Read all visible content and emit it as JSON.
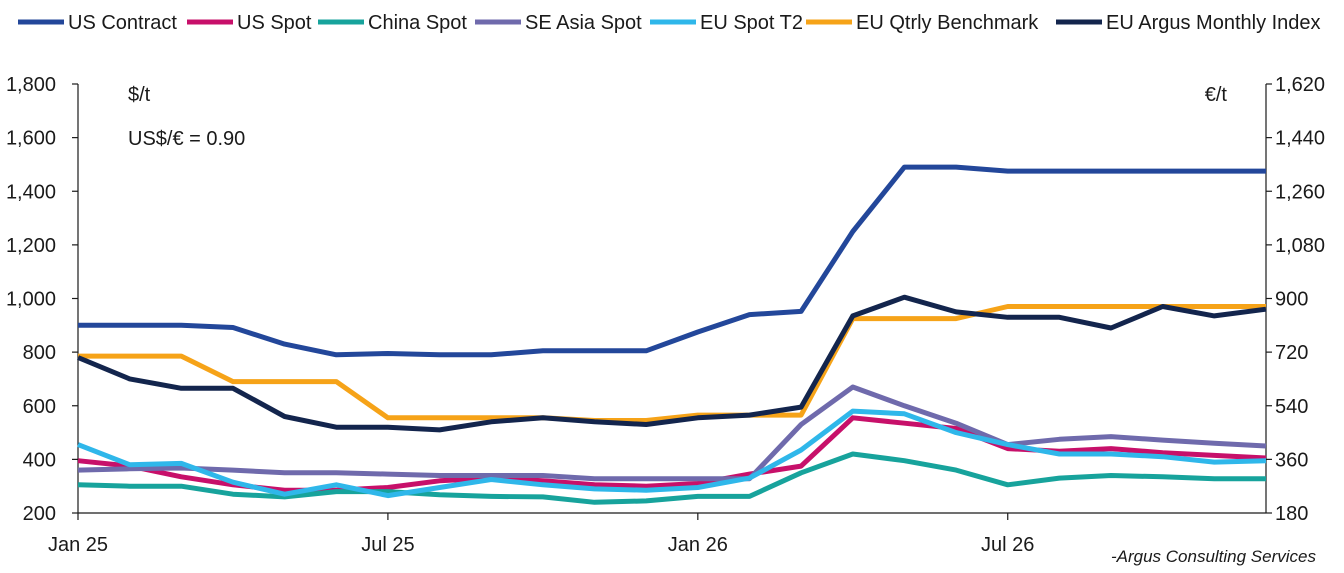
{
  "chart_data": {
    "type": "line",
    "x": [
      "Jan 25",
      "Feb 25",
      "Mar 25",
      "Apr 25",
      "May 25",
      "Jun 25",
      "Jul 25",
      "Aug 25",
      "Sep 25",
      "Oct 25",
      "Nov 25",
      "Dec 25",
      "Jan 26",
      "Feb 26",
      "Mar 26",
      "Apr 26",
      "May 26",
      "Jun 26",
      "Jul 26",
      "Aug 26",
      "Sep 26",
      "Oct 26",
      "Nov 26",
      "Dec 26"
    ],
    "x_tick_labels": [
      "Jan 25",
      "Jul 25",
      "Jan 26",
      "Jul 26"
    ],
    "x_tick_indices": [
      0,
      6,
      12,
      18
    ],
    "ylabel_left": "$/t",
    "ylabel_right": "€/t",
    "annotation": "US$/€ = 0.90",
    "credit": "-Argus Consulting Services",
    "ylim": [
      200,
      1800
    ],
    "y_ticks": [
      "200",
      "400",
      "600",
      "800",
      "1,000",
      "1,200",
      "1,400",
      "1,600",
      "1,800"
    ],
    "y2lim": [
      180,
      1620
    ],
    "y2_ticks": [
      "180",
      "360",
      "540",
      "720",
      "900",
      "1,080",
      "1,260",
      "1,440",
      "1,620"
    ],
    "legend_position": "top",
    "grid": false,
    "series": [
      {
        "name": "US Contract",
        "color": "#23479a",
        "values": [
          900,
          900,
          900,
          892,
          830,
          790,
          795,
          790,
          790,
          805,
          805,
          805,
          875,
          940,
          952,
          1250,
          1490,
          1490,
          1475,
          1475,
          1475,
          1475,
          1475,
          1475
        ]
      },
      {
        "name": "US Spot",
        "color": "#c7106a",
        "values": [
          395,
          375,
          335,
          305,
          285,
          285,
          295,
          320,
          330,
          320,
          305,
          300,
          310,
          345,
          375,
          555,
          535,
          515,
          440,
          430,
          440,
          425,
          415,
          405
        ]
      },
      {
        "name": "China Spot",
        "color": "#17a39c",
        "values": [
          305,
          300,
          300,
          270,
          260,
          280,
          280,
          268,
          262,
          260,
          240,
          245,
          262,
          262,
          350,
          420,
          395,
          360,
          305,
          330,
          340,
          335,
          328,
          328
        ]
      },
      {
        "name": "SE Asia Spot",
        "color": "#6f6aac",
        "values": [
          360,
          365,
          368,
          360,
          350,
          350,
          345,
          340,
          340,
          340,
          328,
          328,
          328,
          328,
          530,
          670,
          600,
          535,
          455,
          475,
          485,
          472,
          460,
          450
        ]
      },
      {
        "name": "EU Spot T2",
        "color": "#2fb7ea",
        "values": [
          455,
          380,
          385,
          315,
          270,
          305,
          265,
          295,
          325,
          305,
          290,
          285,
          295,
          330,
          435,
          580,
          570,
          500,
          455,
          420,
          420,
          410,
          390,
          395
        ]
      },
      {
        "name": "EU Qtrly Benchmark",
        "color": "#f6a318",
        "values": [
          785,
          785,
          785,
          690,
          690,
          690,
          555,
          555,
          555,
          555,
          545,
          545,
          565,
          565,
          565,
          925,
          925,
          925,
          970,
          970,
          970,
          970,
          970,
          970
        ]
      },
      {
        "name": "EU Argus Monthly Index",
        "color": "#13254d",
        "values": [
          780,
          700,
          665,
          665,
          560,
          520,
          520,
          510,
          540,
          555,
          540,
          530,
          555,
          565,
          595,
          935,
          1005,
          950,
          930,
          930,
          890,
          970,
          935,
          960
        ]
      }
    ]
  }
}
